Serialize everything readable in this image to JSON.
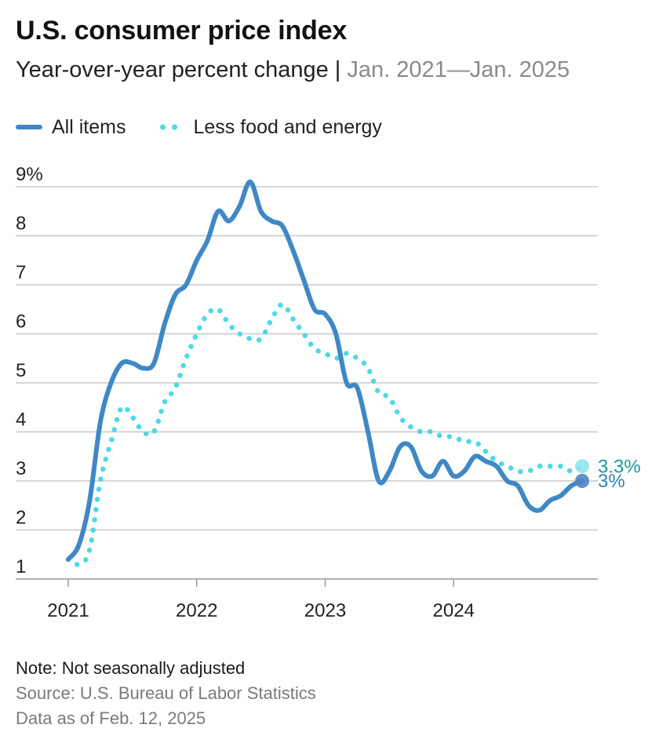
{
  "header": {
    "title": "U.S. consumer price index",
    "subtitle": "Year-over-year percent change",
    "separator": "|",
    "range": "Jan. 2021—Jan. 2025"
  },
  "footer": {
    "note": "Note: Not seasonally adjusted",
    "source": "Source: U.S. Bureau of Labor Statistics",
    "data_as_of": "Data as of Feb. 12, 2025"
  },
  "colors": {
    "all_items": "#3f88c5",
    "less_food_energy": "#4fd8e8",
    "all_items_label": "#2f7fb9",
    "less_food_energy_label": "#1a9aa0",
    "grid": "#c8c8c8",
    "axis": "#9a9a9a"
  },
  "chart_data": {
    "type": "line",
    "x_unit": "month",
    "x": [
      "2021-01",
      "2021-02",
      "2021-03",
      "2021-04",
      "2021-05",
      "2021-06",
      "2021-07",
      "2021-08",
      "2021-09",
      "2021-10",
      "2021-11",
      "2021-12",
      "2022-01",
      "2022-02",
      "2022-03",
      "2022-04",
      "2022-05",
      "2022-06",
      "2022-07",
      "2022-08",
      "2022-09",
      "2022-10",
      "2022-11",
      "2022-12",
      "2023-01",
      "2023-02",
      "2023-03",
      "2023-04",
      "2023-05",
      "2023-06",
      "2023-07",
      "2023-08",
      "2023-09",
      "2023-10",
      "2023-11",
      "2023-12",
      "2024-01",
      "2024-02",
      "2024-03",
      "2024-04",
      "2024-05",
      "2024-06",
      "2024-07",
      "2024-08",
      "2024-09",
      "2024-10",
      "2024-11",
      "2024-12",
      "2025-01"
    ],
    "x_ticks": [
      "2021",
      "2022",
      "2023",
      "2024"
    ],
    "y_ticks": [
      "1",
      "2",
      "3",
      "4",
      "5",
      "6",
      "7",
      "8",
      "9%"
    ],
    "ylim": [
      1,
      9
    ],
    "grid": true,
    "legend_position": "top-left",
    "series": [
      {
        "name": "All items",
        "style": "solid",
        "values": [
          1.4,
          1.7,
          2.6,
          4.2,
          5.0,
          5.4,
          5.4,
          5.3,
          5.4,
          6.2,
          6.8,
          7.0,
          7.5,
          7.9,
          8.5,
          8.3,
          8.6,
          9.1,
          8.5,
          8.3,
          8.2,
          7.7,
          7.1,
          6.5,
          6.4,
          6.0,
          5.0,
          4.9,
          4.0,
          3.0,
          3.2,
          3.7,
          3.7,
          3.2,
          3.1,
          3.4,
          3.1,
          3.2,
          3.5,
          3.4,
          3.3,
          3.0,
          2.9,
          2.5,
          2.4,
          2.6,
          2.7,
          2.9,
          3.0
        ],
        "end_label": "3%"
      },
      {
        "name": "Less food and energy",
        "style": "dotted",
        "values": [
          1.4,
          1.3,
          1.6,
          3.0,
          3.8,
          4.5,
          4.3,
          4.0,
          4.0,
          4.6,
          4.9,
          5.5,
          6.0,
          6.4,
          6.5,
          6.2,
          6.0,
          5.9,
          5.9,
          6.3,
          6.6,
          6.3,
          6.0,
          5.7,
          5.6,
          5.5,
          5.6,
          5.5,
          5.3,
          4.8,
          4.7,
          4.3,
          4.1,
          4.0,
          4.0,
          3.9,
          3.9,
          3.8,
          3.8,
          3.6,
          3.4,
          3.3,
          3.2,
          3.2,
          3.3,
          3.3,
          3.3,
          3.2,
          3.3
        ],
        "end_label": "3.3%"
      }
    ]
  }
}
